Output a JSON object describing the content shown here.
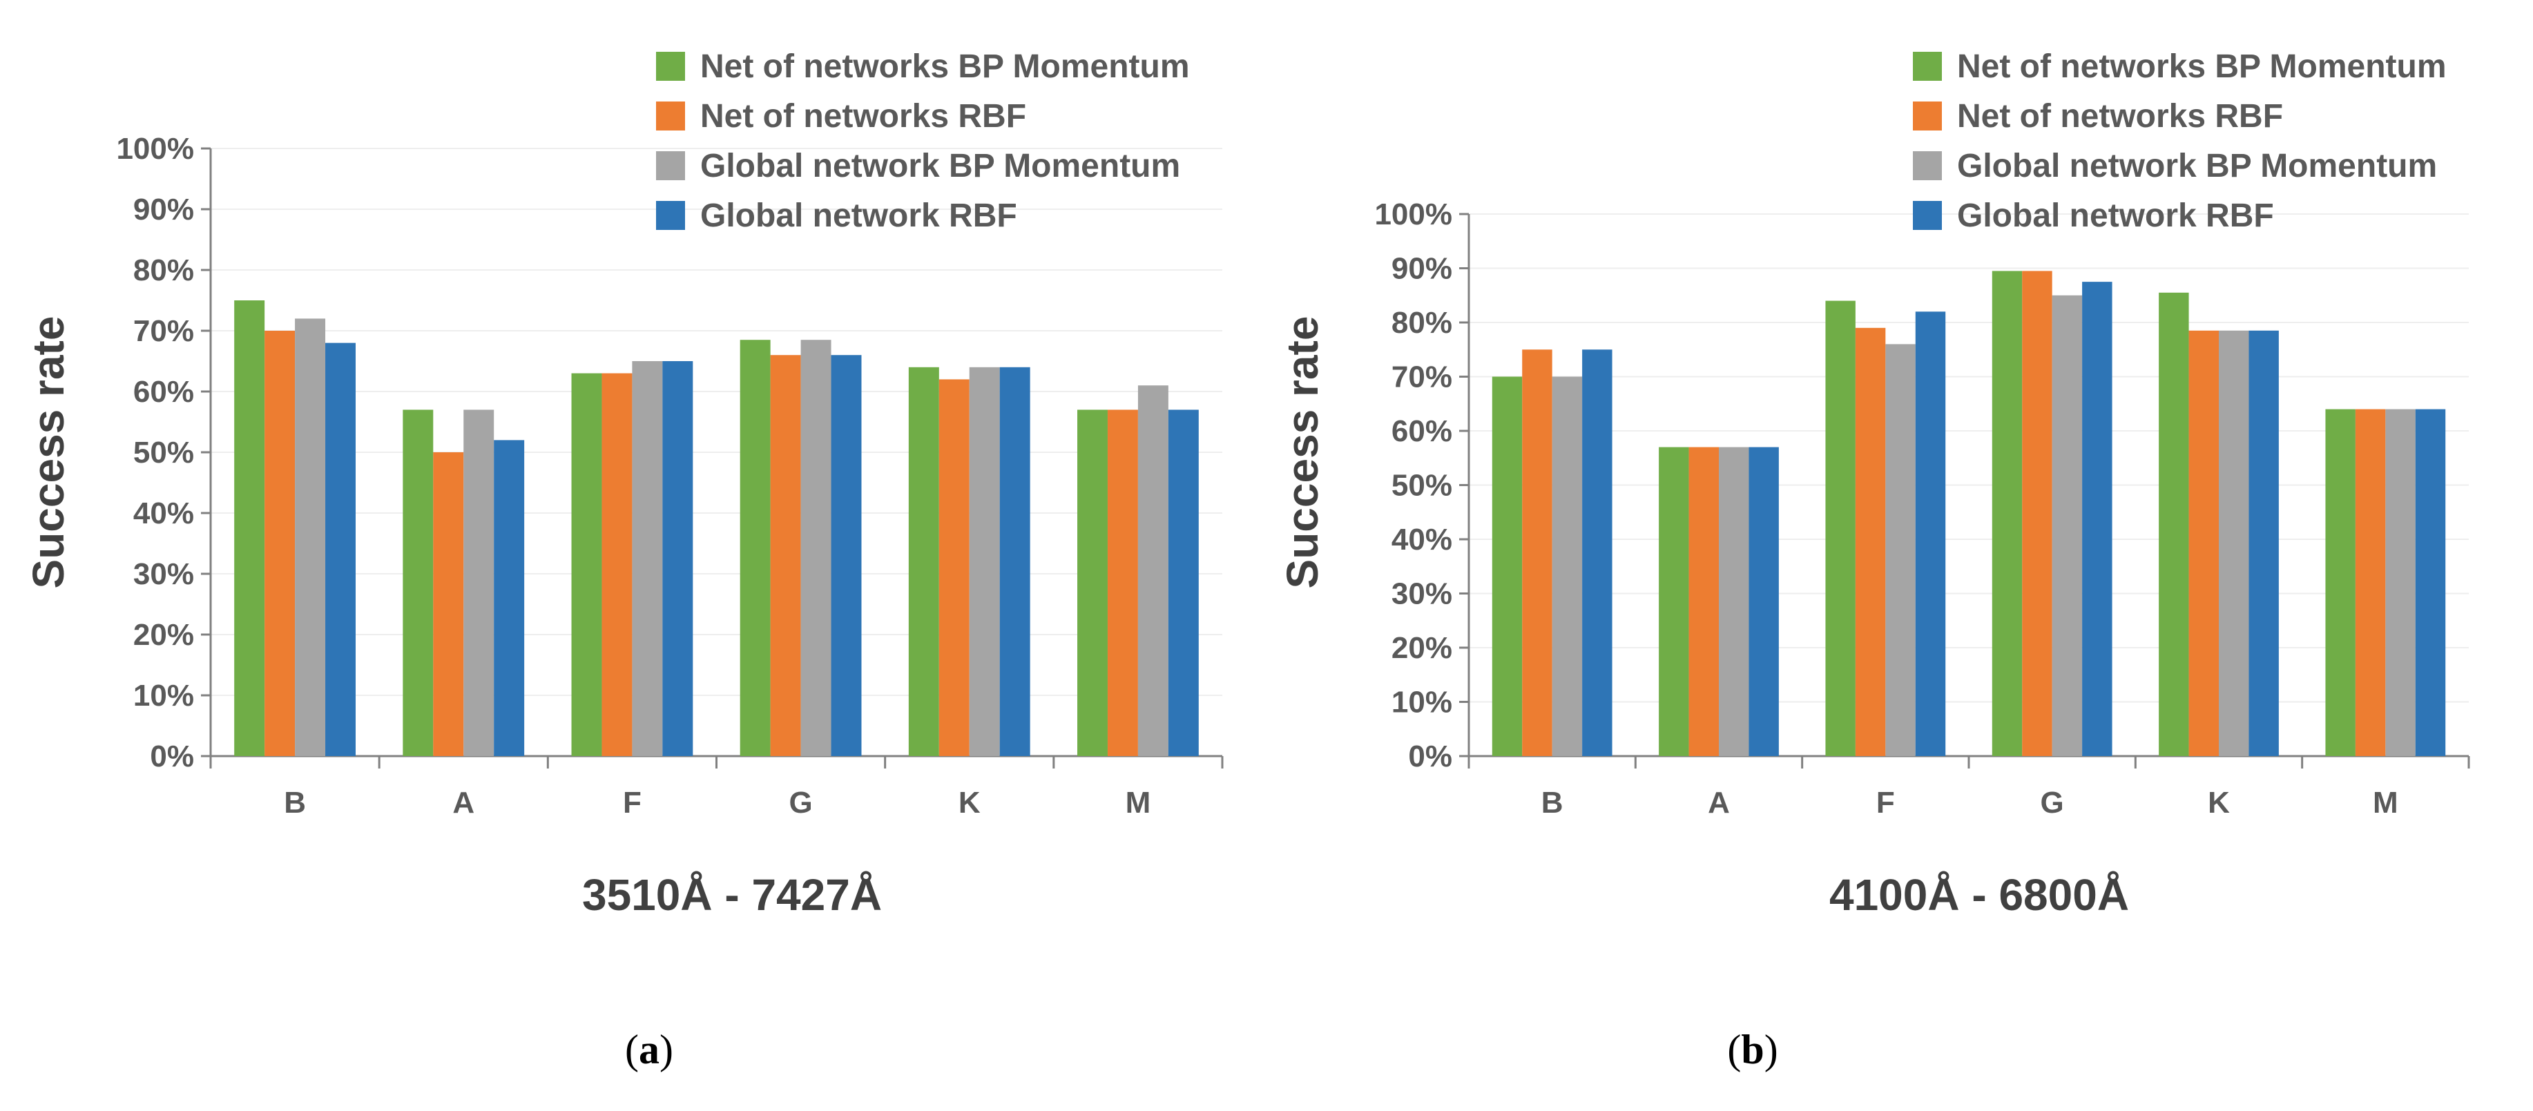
{
  "colors": {
    "series": [
      "#70AD47",
      "#ED7D31",
      "#A5A5A5",
      "#2E75B6"
    ],
    "axis": "#808080",
    "grid": "#EEEEEE"
  },
  "chart_data": [
    {
      "type": "bar",
      "panel_label": "a",
      "xtitle": "3510Å - 7427Å",
      "ylabel": "Success rate",
      "categories": [
        "B",
        "A",
        "F",
        "G",
        "K",
        "M"
      ],
      "ylim": [
        0,
        100
      ],
      "yticks": [
        "0%",
        "10%",
        "20%",
        "30%",
        "40%",
        "50%",
        "60%",
        "70%",
        "80%",
        "90%",
        "100%"
      ],
      "grid": true,
      "legend_position": "top-right",
      "series": [
        {
          "name": "Net of networks BP Momentum",
          "values": [
            75,
            57,
            63,
            68.5,
            64,
            57
          ]
        },
        {
          "name": "Net of networks RBF",
          "values": [
            70,
            50,
            63,
            66,
            62,
            57
          ]
        },
        {
          "name": "Global network BP Momentum",
          "values": [
            72,
            57,
            65,
            68.5,
            64,
            61
          ]
        },
        {
          "name": "Global network RBF",
          "values": [
            68,
            52,
            65,
            66,
            64,
            57
          ]
        }
      ]
    },
    {
      "type": "bar",
      "panel_label": "b",
      "xtitle": "4100Å - 6800Å",
      "ylabel": "Success rate",
      "categories": [
        "B",
        "A",
        "F",
        "G",
        "K",
        "M"
      ],
      "ylim": [
        0,
        100
      ],
      "yticks": [
        "0%",
        "10%",
        "20%",
        "30%",
        "40%",
        "50%",
        "60%",
        "70%",
        "80%",
        "90%",
        "100%"
      ],
      "grid": true,
      "legend_position": "top-right",
      "series": [
        {
          "name": "Net of networks BP Momentum",
          "values": [
            70,
            57,
            84,
            89.5,
            85.5,
            64
          ]
        },
        {
          "name": "Net of networks RBF",
          "values": [
            75,
            57,
            79,
            89.5,
            78.5,
            64
          ]
        },
        {
          "name": "Global network BP Momentum",
          "values": [
            70,
            57,
            76,
            85,
            78.5,
            64
          ]
        },
        {
          "name": "Global network RBF",
          "values": [
            75,
            57,
            82,
            87.5,
            78.5,
            64
          ]
        }
      ]
    }
  ]
}
